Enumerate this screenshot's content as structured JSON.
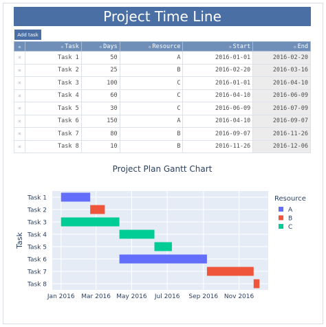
{
  "page": {
    "title": "Project Time Line",
    "add_task_label": "Add task"
  },
  "table": {
    "columns": [
      "",
      "Task",
      "Days",
      "Resource",
      "Start",
      "End"
    ],
    "rows": [
      {
        "delete": "×",
        "task": "Task 1",
        "days": "50",
        "resource": "A",
        "start": "2016-01-01",
        "end": "2016-02-20"
      },
      {
        "delete": "×",
        "task": "Task 2",
        "days": "25",
        "resource": "B",
        "start": "2016-02-20",
        "end": "2016-03-16"
      },
      {
        "delete": "×",
        "task": "Task 3",
        "days": "100",
        "resource": "C",
        "start": "2016-01-01",
        "end": "2016-04-10"
      },
      {
        "delete": "×",
        "task": "Task 4",
        "days": "60",
        "resource": "C",
        "start": "2016-04-10",
        "end": "2016-06-09"
      },
      {
        "delete": "×",
        "task": "Task 5",
        "days": "30",
        "resource": "C",
        "start": "2016-06-09",
        "end": "2016-07-09"
      },
      {
        "delete": "×",
        "task": "Task 6",
        "days": "150",
        "resource": "A",
        "start": "2016-04-10",
        "end": "2016-09-07"
      },
      {
        "delete": "×",
        "task": "Task 7",
        "days": "80",
        "resource": "B",
        "start": "2016-09-07",
        "end": "2016-11-26"
      },
      {
        "delete": "×",
        "task": "Task 8",
        "days": "10",
        "resource": "B",
        "start": "2016-11-26",
        "end": "2016-12-06"
      }
    ]
  },
  "chart_data": {
    "type": "bar",
    "title": "Project Plan Gantt Chart",
    "orientation": "horizontal-gantt",
    "ylabel": "Task",
    "categories": [
      "Task 1",
      "Task 2",
      "Task 3",
      "Task 4",
      "Task 5",
      "Task 6",
      "Task 7",
      "Task 8"
    ],
    "x_ticks": [
      {
        "label": "Jan 2016",
        "date": "2016-01-01"
      },
      {
        "label": "Mar 2016",
        "date": "2016-03-01"
      },
      {
        "label": "May 2016",
        "date": "2016-05-01"
      },
      {
        "label": "Jul 2016",
        "date": "2016-07-01"
      },
      {
        "label": "Sep 2016",
        "date": "2016-09-01"
      },
      {
        "label": "Nov 2016",
        "date": "2016-11-01"
      }
    ],
    "xlim": [
      "2015-12-17",
      "2016-12-21"
    ],
    "bars": [
      {
        "task": "Task 1",
        "start": "2016-01-01",
        "end": "2016-02-20",
        "resource": "A"
      },
      {
        "task": "Task 2",
        "start": "2016-02-20",
        "end": "2016-03-16",
        "resource": "B"
      },
      {
        "task": "Task 3",
        "start": "2016-01-01",
        "end": "2016-04-10",
        "resource": "C"
      },
      {
        "task": "Task 4",
        "start": "2016-04-10",
        "end": "2016-06-09",
        "resource": "C"
      },
      {
        "task": "Task 5",
        "start": "2016-06-09",
        "end": "2016-07-09",
        "resource": "C"
      },
      {
        "task": "Task 6",
        "start": "2016-04-10",
        "end": "2016-09-07",
        "resource": "A"
      },
      {
        "task": "Task 7",
        "start": "2016-09-07",
        "end": "2016-11-26",
        "resource": "B"
      },
      {
        "task": "Task 8",
        "start": "2016-11-26",
        "end": "2016-12-06",
        "resource": "B"
      }
    ],
    "legend": {
      "title": "Resource",
      "position": "right",
      "items": [
        {
          "name": "A",
          "color": "#636efa"
        },
        {
          "name": "B",
          "color": "#ef553b"
        },
        {
          "name": "C",
          "color": "#00cc96"
        }
      ]
    },
    "grid": true,
    "plot_bg": "#e5ecf6"
  }
}
